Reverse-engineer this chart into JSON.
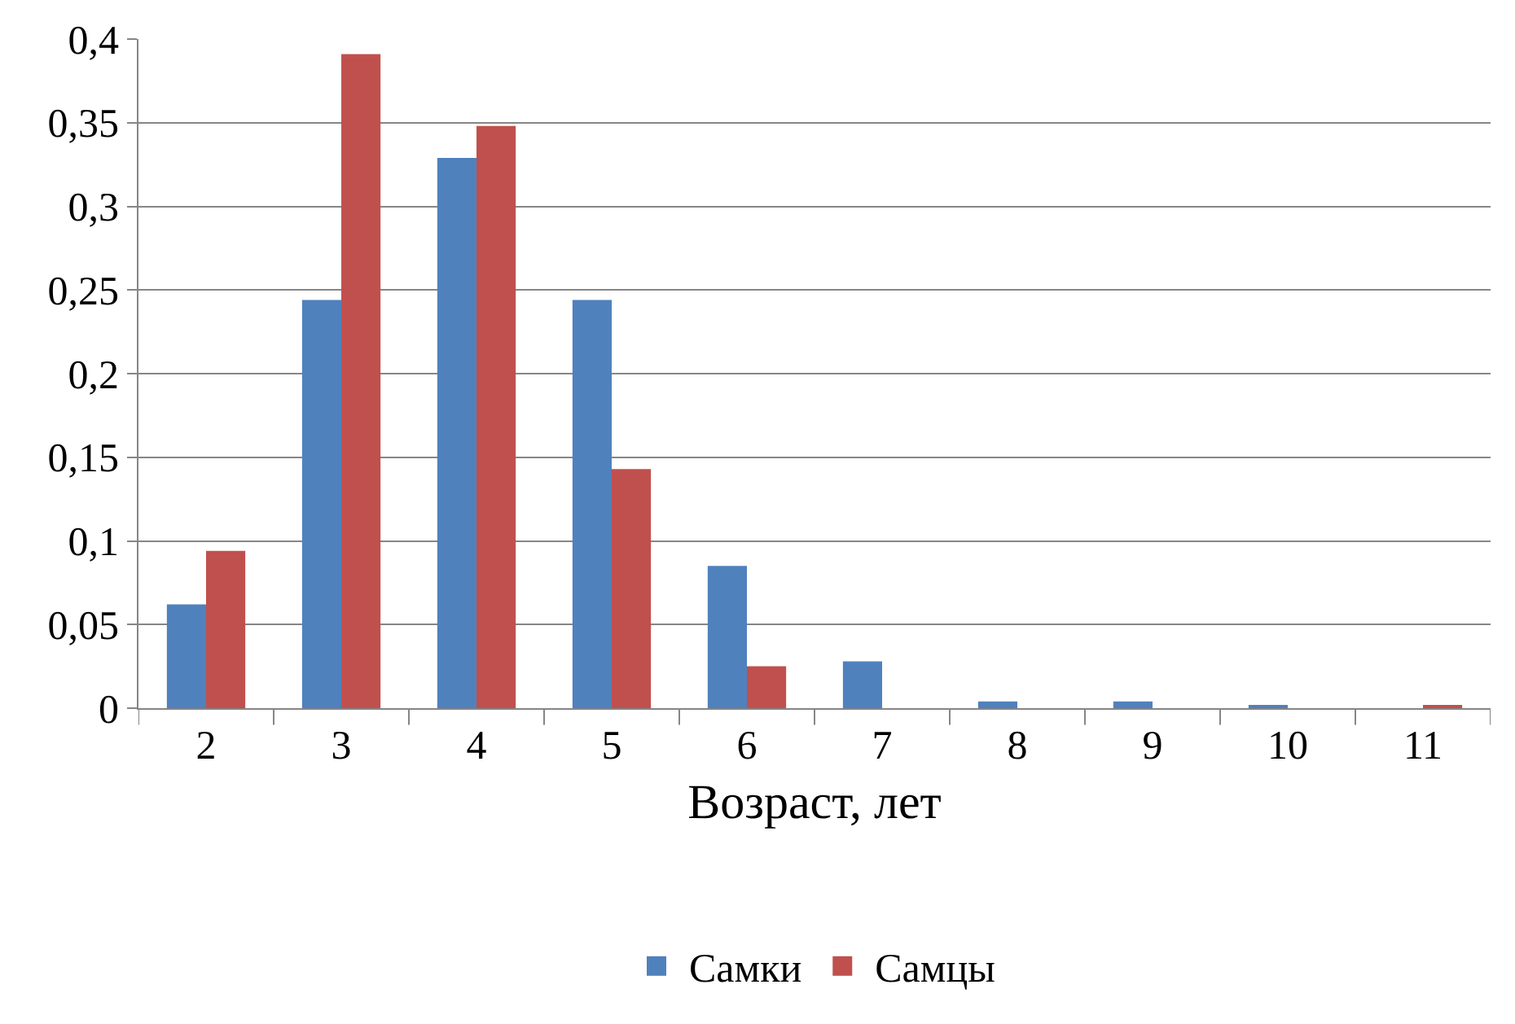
{
  "chart_data": {
    "type": "bar",
    "xlabel": "Возраст, лет",
    "categories": [
      "2",
      "3",
      "4",
      "5",
      "6",
      "7",
      "8",
      "9",
      "10",
      "11"
    ],
    "series": [
      {
        "name": "Самки",
        "color": "#4f81bd",
        "values": [
          0.062,
          0.244,
          0.329,
          0.244,
          0.085,
          0.028,
          0.004,
          0.004,
          0.002,
          0
        ]
      },
      {
        "name": "Самцы",
        "color": "#c0504d",
        "values": [
          0.094,
          0.391,
          0.348,
          0.143,
          0.025,
          0,
          0,
          0,
          0,
          0.002
        ]
      }
    ],
    "ylim": [
      0,
      0.4
    ],
    "yticks": [
      0,
      {
        "value": 0.05,
        "label": "0,05"
      },
      {
        "value": 0.1,
        "label": "0,1"
      },
      {
        "value": 0.15,
        "label": "0,15"
      },
      {
        "value": 0.2,
        "label": "0,2"
      },
      {
        "value": 0.25,
        "label": "0,25"
      },
      {
        "value": 0.3,
        "label": "0,3"
      },
      {
        "value": 0.35,
        "label": "0,35"
      },
      {
        "value": 0.4,
        "label": "0,4"
      }
    ],
    "grid": "y",
    "legend": "bottom"
  }
}
